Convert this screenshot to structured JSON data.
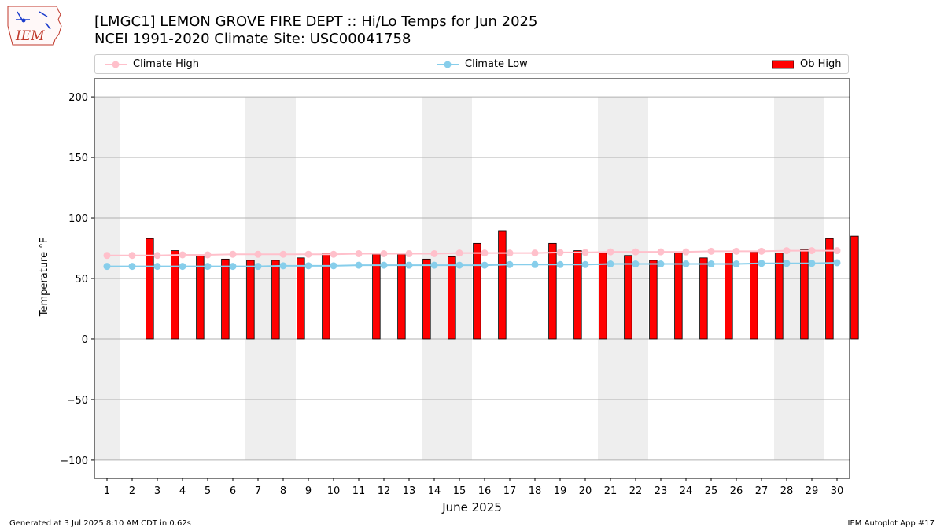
{
  "header": {
    "title_line1": "[LMGC1] LEMON GROVE FIRE DEPT :: Hi/Lo Temps for Jun 2025",
    "title_line2": "NCEI 1991-2020 Climate Site: USC00041758"
  },
  "logo": {
    "text": "IEM"
  },
  "footer": {
    "left": "Generated at 3 Jul 2025 8:10 AM CDT in 0.62s",
    "right": "IEM Autoplot App #17"
  },
  "colors": {
    "climate_high": "#ffc0cb",
    "climate_low": "#87ceeb",
    "ob_high": "#ff0000",
    "weekend_band": "#eeeeee",
    "grid": "#b0b0b0"
  },
  "chart_data": {
    "type": "bar",
    "title": "[LMGC1] LEMON GROVE FIRE DEPT :: Hi/Lo Temps for Jun 2025",
    "subtitle": "NCEI 1991-2020 Climate Site: USC00041758",
    "xlabel": "June 2025",
    "ylabel": "Temperature °F",
    "xlim": [
      0.5,
      30.5
    ],
    "ylim": [
      -115,
      215
    ],
    "yticks": [
      -100,
      -50,
      0,
      50,
      100,
      150,
      200
    ],
    "xticks": [
      1,
      2,
      3,
      4,
      5,
      6,
      7,
      8,
      9,
      10,
      11,
      12,
      13,
      14,
      15,
      16,
      17,
      18,
      19,
      20,
      21,
      22,
      23,
      24,
      25,
      26,
      27,
      28,
      29,
      30
    ],
    "grid": "horizontal",
    "legend_position": "top",
    "legend": [
      "Climate High",
      "Climate Low",
      "Ob High"
    ],
    "weekend_bands": [
      [
        0.5,
        1.5
      ],
      [
        6.5,
        8.5
      ],
      [
        13.5,
        15.5
      ],
      [
        20.5,
        22.5
      ],
      [
        27.5,
        29.5
      ]
    ],
    "band_range": [
      -100,
      200
    ],
    "days": [
      1,
      2,
      3,
      4,
      5,
      6,
      7,
      8,
      9,
      10,
      11,
      12,
      13,
      14,
      15,
      16,
      17,
      18,
      19,
      20,
      21,
      22,
      23,
      24,
      25,
      26,
      27,
      28,
      29,
      30
    ],
    "series": [
      {
        "name": "Ob High",
        "kind": "bar",
        "values": [
          null,
          83,
          73,
          69,
          66,
          65,
          65,
          67,
          71,
          null,
          70,
          70,
          66,
          68,
          79,
          89,
          null,
          79,
          73,
          71,
          69,
          65,
          71,
          67,
          71,
          72,
          71,
          74,
          83,
          85
        ]
      },
      {
        "name": "Climate High",
        "kind": "line",
        "values": [
          69,
          69,
          69,
          69.5,
          69.5,
          70,
          70,
          70,
          70,
          70,
          70.5,
          70.5,
          70.5,
          70.5,
          71,
          71,
          71,
          71,
          71.5,
          71.5,
          72,
          72,
          72,
          72,
          72.5,
          72.5,
          72.5,
          73,
          73,
          73
        ]
      },
      {
        "name": "Climate Low",
        "kind": "line",
        "values": [
          60,
          60,
          60,
          60,
          60,
          60,
          60,
          60.5,
          60.5,
          60.5,
          61,
          61,
          61,
          61,
          61,
          61,
          61.5,
          61.5,
          61.5,
          61.5,
          62,
          62,
          62,
          62,
          62,
          62,
          62.5,
          62.5,
          62.5,
          63
        ]
      }
    ]
  }
}
